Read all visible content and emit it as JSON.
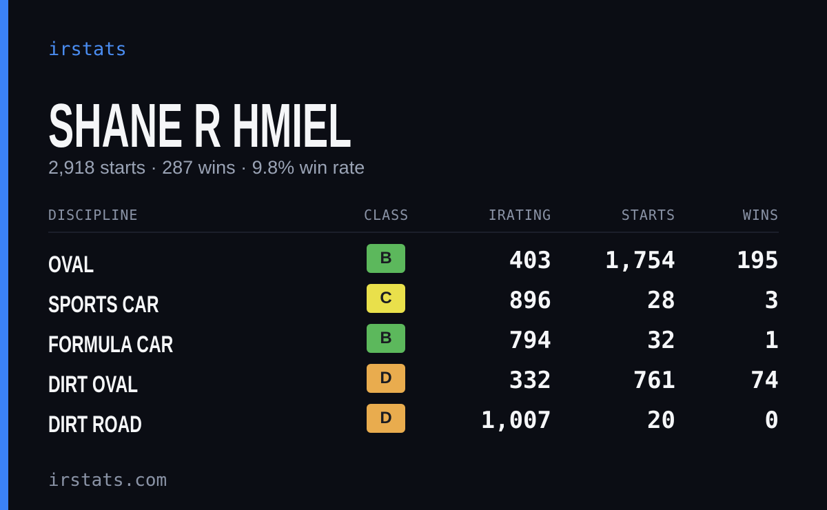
{
  "brand": "irstats",
  "driver": {
    "name": "SHANE R HMIEL",
    "summary": "2,918 starts · 287 wins · 9.8% win rate"
  },
  "table": {
    "headers": [
      "DISCIPLINE",
      "CLASS",
      "IRATING",
      "STARTS",
      "WINS"
    ],
    "rows": [
      {
        "discipline": "OVAL",
        "class": "B",
        "class_color": "#5cb85c",
        "irating": "403",
        "starts": "1,754",
        "wins": "195"
      },
      {
        "discipline": "SPORTS CAR",
        "class": "C",
        "class_color": "#e9e04b",
        "irating": "896",
        "starts": "28",
        "wins": "3"
      },
      {
        "discipline": "FORMULA CAR",
        "class": "B",
        "class_color": "#5cb85c",
        "irating": "794",
        "starts": "32",
        "wins": "1"
      },
      {
        "discipline": "DIRT OVAL",
        "class": "D",
        "class_color": "#e9ac4e",
        "irating": "332",
        "starts": "761",
        "wins": "74"
      },
      {
        "discipline": "DIRT ROAD",
        "class": "D",
        "class_color": "#e9ac4e",
        "irating": "1,007",
        "starts": "20",
        "wins": "0"
      }
    ]
  },
  "footer": "irstats.com"
}
